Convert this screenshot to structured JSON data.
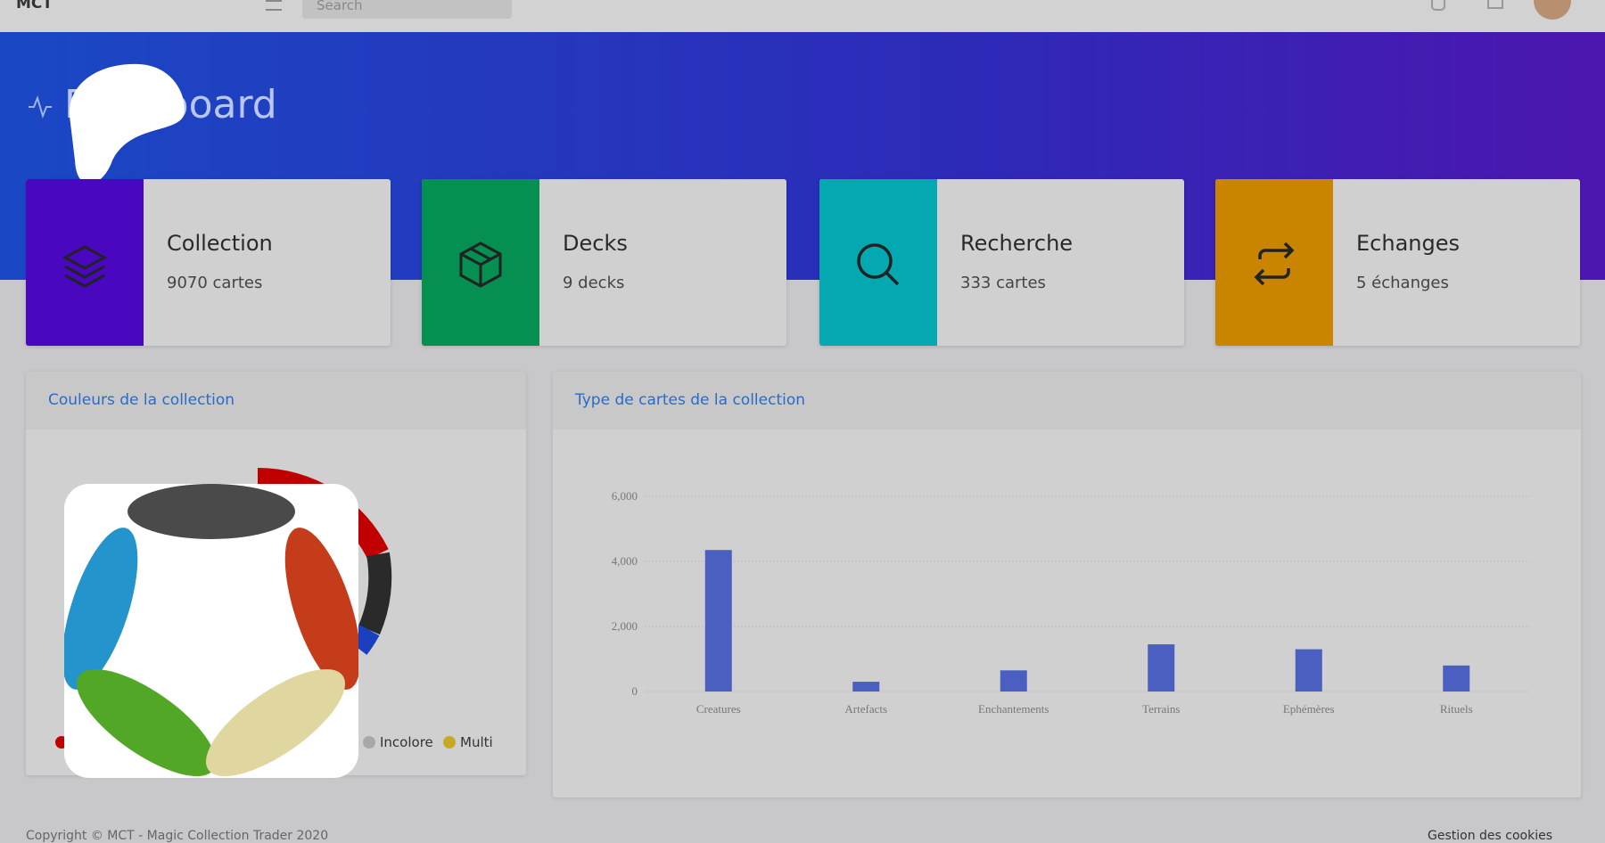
{
  "navbar": {
    "brand": "MCT",
    "search_placeholder": "Search"
  },
  "header": {
    "title": "Dashboard"
  },
  "cards": [
    {
      "title": "Collection",
      "subtitle": "9070 cartes",
      "color": "#4a07c0"
    },
    {
      "title": "Decks",
      "subtitle": "9 decks",
      "color": "#058f50"
    },
    {
      "title": "Recherche",
      "subtitle": "333 cartes",
      "color": "#04a8b0"
    },
    {
      "title": "Echanges",
      "subtitle": "5 échanges",
      "color": "#c98500"
    }
  ],
  "colors_panel": {
    "title": "Couleurs de la collection",
    "legend": [
      {
        "name": null,
        "color": "#c00000"
      },
      {
        "name": "Incolore",
        "color": "#a8a8a8"
      },
      {
        "name": "Multi",
        "color": "#c9a826"
      }
    ]
  },
  "chart_data": {
    "type": "bar",
    "title": "Type de cartes de la collection",
    "categories": [
      "Creatures",
      "Artefacts",
      "Enchantements",
      "Terrains",
      "Ephémères",
      "Rituels"
    ],
    "values": [
      4350,
      300,
      650,
      1450,
      1300,
      800
    ],
    "color": "#4a5fbf",
    "ylim": [
      0,
      6000
    ],
    "yticks": [
      0,
      {
        "value": 2000,
        "label": "2,000"
      },
      {
        "value": 4000,
        "label": "4,000"
      },
      {
        "value": 6000,
        "label": "6,000"
      }
    ],
    "grid": true
  },
  "footer": {
    "copyright": "Copyright © MCT - Magic Collection Trader 2020",
    "cookies": "Gestion des cookies"
  }
}
